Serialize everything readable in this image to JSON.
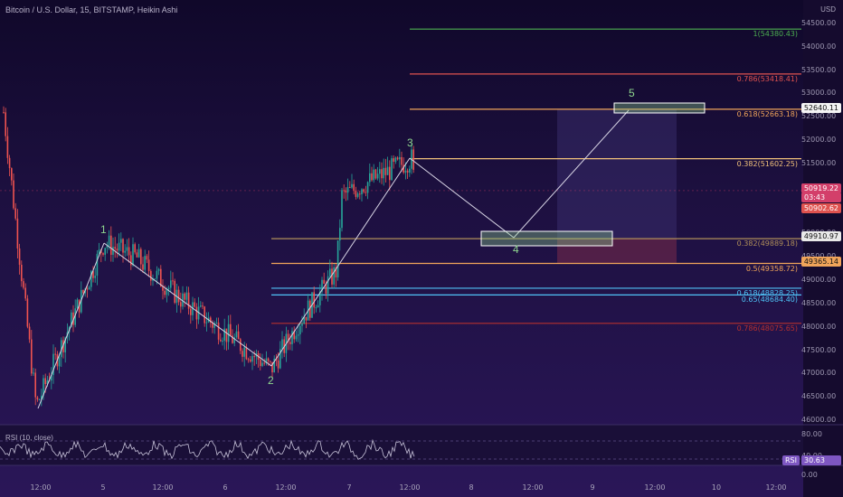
{
  "header": {
    "title": "Bitcoin / U.S. Dollar, 15, BITSTAMP, Heikin Ashi",
    "currency": "USD"
  },
  "price_axis": {
    "ticks": [
      "54500.00",
      "54000.00",
      "53500.00",
      "53000.00",
      "52500.00",
      "52000.00",
      "51500.00",
      "51000.00",
      "50500.00",
      "50000.00",
      "49500.00",
      "49000.00",
      "48500.00",
      "48000.00",
      "47500.00",
      "47000.00",
      "46500.00",
      "46000.00"
    ],
    "badges": {
      "target": "52640.11",
      "current": "50919.22",
      "countdown": "03:43",
      "last": "50902.62",
      "wave4": "49910.97",
      "support": "49365.14"
    }
  },
  "fib_levels": [
    {
      "label": "1(54380.43)",
      "price": 54380.43,
      "color": "#4caf50"
    },
    {
      "label": "0.786(53418.41)",
      "price": 53418.41,
      "color": "#e0524f"
    },
    {
      "label": "0.618(52663.18)",
      "price": 52663.18,
      "color": "#f0a45a"
    },
    {
      "label": "0.382(51602.25)",
      "price": 51602.25,
      "color": "#f0c07a"
    },
    {
      "label": "0.382(49889.18)",
      "price": 49889.18,
      "color": "#b08f5a"
    },
    {
      "label": "0.5(49358.72)",
      "price": 49358.72,
      "color": "#f0a45a"
    },
    {
      "label": "0.618(48828.25)",
      "price": 48828.25,
      "color": "#4fc3f7"
    },
    {
      "label": "0.65(48684.40)",
      "price": 48684.4,
      "color": "#4fc3f7"
    },
    {
      "label": "0.786(48075.65)",
      "price": 48075.65,
      "color": "#b5302e"
    }
  ],
  "waves": [
    "1",
    "2",
    "3",
    "4",
    "5"
  ],
  "rsi": {
    "title": "RSI (10, close)",
    "ticks": [
      "80.00",
      "40.00",
      "0.00"
    ],
    "value": "30.63",
    "badge": "RSI"
  },
  "time_axis": [
    "12:00",
    "5",
    "12:00",
    "6",
    "12:00",
    "7",
    "12:00",
    "8",
    "12:00",
    "9",
    "12:00",
    "10",
    "12:00"
  ],
  "colors": {
    "up": "#26a69a",
    "down": "#ef5350",
    "target_box": "#ffffff",
    "wave_line": "#d9d6e6"
  }
}
